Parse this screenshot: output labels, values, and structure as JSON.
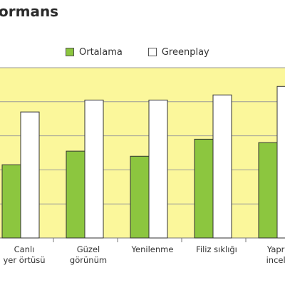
{
  "header": {
    "title": "ormans"
  },
  "chart_data": {
    "type": "bar",
    "categories": [
      "Canlı\nyer örtüsü",
      "Güzel\ngörünüm",
      "Yenilenme",
      "Filiz sıklığı",
      "Yaprak\ninceliği"
    ],
    "series": [
      {
        "name": "Ortalama",
        "values": [
          2.15,
          2.55,
          2.4,
          2.9,
          2.8
        ],
        "color": "#8cc63f"
      },
      {
        "name": "Greenplay",
        "values": [
          3.7,
          4.05,
          4.05,
          4.2,
          4.45
        ],
        "color": "#ffffff"
      }
    ],
    "ylim": [
      0,
      5
    ],
    "grid": true,
    "legend": "top",
    "plot_background": "#fbf79b",
    "title": "ormans",
    "xlabel": "",
    "ylabel": ""
  }
}
